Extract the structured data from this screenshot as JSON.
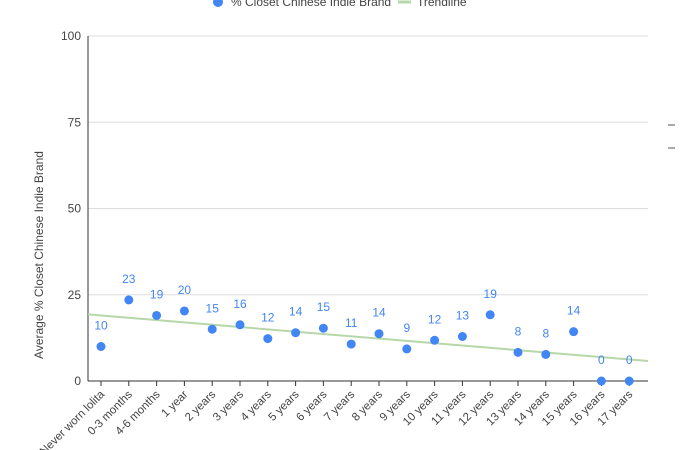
{
  "chart_data": {
    "type": "scatter",
    "title": "",
    "xlabel": "",
    "ylabel": "Average % Closet Chinese Indie Brand",
    "ylim": [
      0,
      100
    ],
    "yticks": [
      "0",
      "25",
      "50",
      "75",
      "100"
    ],
    "grid": true,
    "legend_position": "top",
    "categories": [
      "Never worn lolita",
      "0-3 months",
      "4-6 months",
      "1 year",
      "2 years",
      "3 years",
      "4 years",
      "5 years",
      "6 years",
      "7 years",
      "8 years",
      "9 years",
      "10 years",
      "11 years",
      "12 years",
      "13 years",
      "14 years",
      "15 years",
      "16 years",
      "17 years"
    ],
    "series": [
      {
        "name": "% Closet Chinese Indie Brand",
        "values": [
          10,
          23.5,
          19,
          20.3,
          15,
          16.3,
          12.3,
          14,
          15.3,
          10.7,
          13.7,
          9.3,
          11.8,
          12.9,
          19.2,
          8.3,
          7.7,
          14.3,
          0,
          0
        ],
        "labels": [
          "10",
          "23",
          "19",
          "20",
          "15",
          "16",
          "12",
          "14",
          "15",
          "11",
          "14",
          "9",
          "12",
          "13",
          "19",
          "8",
          "8",
          "14",
          "0",
          "0"
        ],
        "color": "#4285f4"
      }
    ],
    "trendline": {
      "name": "Trendline",
      "start": 19.3,
      "end": 5.8,
      "color": "#b6d7a8"
    }
  }
}
